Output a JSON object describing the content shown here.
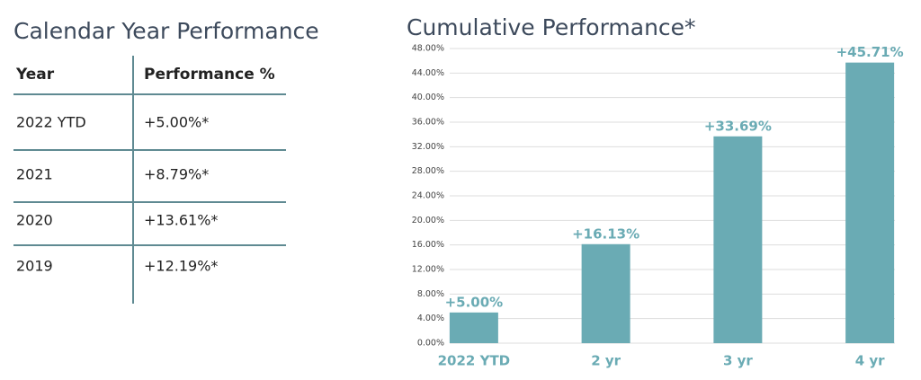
{
  "table": {
    "title": "Calendar Year Performance",
    "header": [
      "Year",
      "Performance %"
    ],
    "rows": [
      [
        "2022 YTD",
        "+5.00%*"
      ],
      [
        "2021",
        "+8.79%*"
      ],
      [
        "2020",
        "+13.61%*"
      ],
      [
        "2019",
        "+12.19%*"
      ]
    ]
  },
  "chart_data": {
    "type": "bar",
    "title": "Cumulative Performance*",
    "categories": [
      "2022 YTD",
      "2 yr",
      "3 yr",
      "4 yr"
    ],
    "values": [
      5.0,
      16.13,
      33.69,
      45.71
    ],
    "value_labels": [
      "+5.00%",
      "+16.13%",
      "+33.69%",
      "+45.71%"
    ],
    "color": "#6aabb4",
    "ylim": [
      0,
      48
    ],
    "yticks": [
      {
        "value": 0,
        "label": "0.00%"
      },
      {
        "value": 4,
        "label": "4.00%"
      },
      {
        "value": 8,
        "label": "8.00%"
      },
      {
        "value": 12,
        "label": "12.00%"
      },
      {
        "value": 16,
        "label": "16.00%"
      },
      {
        "value": 20,
        "label": "20.00%"
      },
      {
        "value": 24,
        "label": "24.00%"
      },
      {
        "value": 28,
        "label": "28.00%"
      },
      {
        "value": 32,
        "label": "32.00%"
      },
      {
        "value": 36,
        "label": "36.00%"
      },
      {
        "value": 40,
        "label": "40.00%"
      },
      {
        "value": 44,
        "label": "44.00%"
      },
      {
        "value": 48,
        "label": "48.00%"
      }
    ],
    "grid": true
  }
}
